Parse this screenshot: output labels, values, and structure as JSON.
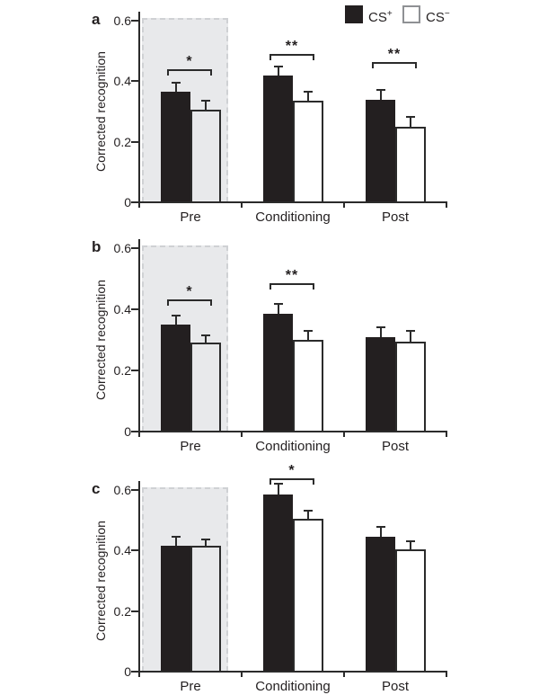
{
  "figure": {
    "background": "#ffffff",
    "ink_color": "#231f20",
    "axis_color": "#2b2b2b",
    "open_bar_border_color": "#2b2b2b",
    "gray_region_fill": "#e8e9eb",
    "gray_region_border": "#cfd1d4",
    "legend_open_swatch_border": "#8f9194"
  },
  "legend": {
    "items": [
      {
        "name": "cs-plus",
        "base": "CS",
        "sup": "+",
        "swatch": "filled"
      },
      {
        "name": "cs-minus",
        "base": "CS",
        "sup": "−",
        "swatch": "open"
      }
    ]
  },
  "chart_data": [
    {
      "panel_label": "a",
      "type": "bar",
      "title": "",
      "xlabel": "",
      "ylabel": "Corrected recognition",
      "ylim": [
        0,
        0.6
      ],
      "ytick_values": [
        0,
        0.2,
        0.4,
        0.6
      ],
      "ytick_labels": [
        "0",
        "0.2",
        "0.4",
        "0.6"
      ],
      "categories": [
        "Pre",
        "Conditioning",
        "Post"
      ],
      "grid": "off",
      "legend_position": "top-right",
      "series": [
        {
          "name": "CS+",
          "style": "filled",
          "values": [
            0.365,
            0.42,
            0.34
          ],
          "errors": [
            0.03,
            0.03,
            0.03
          ]
        },
        {
          "name": "CS−",
          "style": "open",
          "values": [
            0.305,
            0.335,
            0.25
          ],
          "errors": [
            0.03,
            0.03,
            0.033
          ]
        }
      ],
      "significance": [
        {
          "category": "Pre",
          "label": "*",
          "bracket_y": 0.44
        },
        {
          "category": "Conditioning",
          "label": "**",
          "bracket_y": 0.49
        },
        {
          "category": "Post",
          "label": "**",
          "bracket_y": 0.463
        }
      ],
      "highlight_region": {
        "category": "Pre",
        "style": "dashed-gray"
      }
    },
    {
      "panel_label": "b",
      "type": "bar",
      "title": "",
      "xlabel": "",
      "ylabel": "Corrected recognition",
      "ylim": [
        0,
        0.6
      ],
      "ytick_values": [
        0,
        0.2,
        0.4,
        0.6
      ],
      "ytick_labels": [
        "0",
        "0.2",
        "0.4",
        "0.6"
      ],
      "categories": [
        "Pre",
        "Conditioning",
        "Post"
      ],
      "grid": "off",
      "legend_position": "none",
      "series": [
        {
          "name": "CS+",
          "style": "filled",
          "values": [
            0.35,
            0.385,
            0.31
          ],
          "errors": [
            0.03,
            0.033,
            0.03
          ]
        },
        {
          "name": "CS−",
          "style": "open",
          "values": [
            0.29,
            0.3,
            0.295
          ],
          "errors": [
            0.025,
            0.03,
            0.033
          ]
        }
      ],
      "significance": [
        {
          "category": "Pre",
          "label": "*",
          "bracket_y": 0.432
        },
        {
          "category": "Conditioning",
          "label": "**",
          "bracket_y": 0.485
        }
      ],
      "highlight_region": {
        "category": "Pre",
        "style": "dashed-gray"
      }
    },
    {
      "panel_label": "c",
      "type": "bar",
      "title": "",
      "xlabel": "",
      "ylabel": "Corrected recognition",
      "ylim": [
        0,
        0.6
      ],
      "ytick_values": [
        0,
        0.2,
        0.4,
        0.6
      ],
      "ytick_labels": [
        "0",
        "0.2",
        "0.4",
        "0.6"
      ],
      "categories": [
        "Pre",
        "Conditioning",
        "Post"
      ],
      "grid": "off",
      "legend_position": "none",
      "series": [
        {
          "name": "CS+",
          "style": "filled",
          "values": [
            0.415,
            0.585,
            0.445
          ],
          "errors": [
            0.03,
            0.035,
            0.032
          ]
        },
        {
          "name": "CS−",
          "style": "open",
          "values": [
            0.415,
            0.505,
            0.405
          ],
          "errors": [
            0.022,
            0.027,
            0.027
          ]
        }
      ],
      "significance": [
        {
          "category": "Conditioning",
          "label": "*",
          "bracket_y": 0.638
        }
      ],
      "highlight_region": {
        "category": "Pre",
        "style": "dashed-gray"
      }
    }
  ]
}
